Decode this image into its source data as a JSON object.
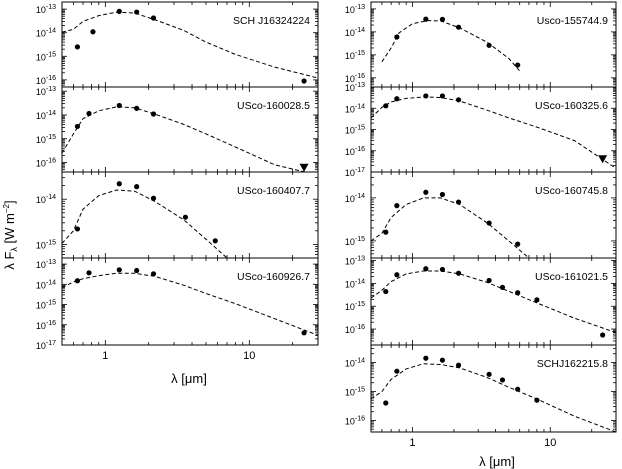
{
  "figure": {
    "ylabel_left": "λ F",
    "ylabel_sub": "λ",
    "ylabel_units": "[W m",
    "ylabel_exp": "−2",
    "ylabel_close": "]",
    "xlabel_left": "λ [μm]",
    "xlabel_right": "λ [μm]"
  },
  "chart_data": [
    {
      "type": "scatter",
      "title": "SCH J16324224",
      "x_scale": "log",
      "y_scale": "log",
      "xlim": [
        0.5,
        30
      ],
      "ylim": [
        5e-17,
        2e-13
      ],
      "yticks": [
        {
          "v": 1e-13,
          "l": "10",
          "e": "-13"
        },
        {
          "v": 1e-14,
          "l": "10",
          "e": "-14"
        },
        {
          "v": 1e-15,
          "l": "10",
          "e": "-15"
        },
        {
          "v": 1e-16,
          "l": "10",
          "e": "-16"
        }
      ],
      "xticks": [],
      "points": [
        [
          0.64,
          2.5e-15
        ],
        [
          0.82,
          1.1e-14
        ],
        [
          1.25,
          8e-14
        ],
        [
          1.65,
          7.5e-14
        ],
        [
          2.16,
          4.2e-14
        ],
        [
          24,
          9e-17
        ]
      ],
      "upper_limits": [],
      "model": [
        [
          0.5,
          1.05e-14
        ],
        [
          0.6,
          1.4e-14
        ],
        [
          0.7,
          3e-14
        ],
        [
          0.9,
          5.3e-14
        ],
        [
          1.2,
          7.5e-14
        ],
        [
          1.6,
          6.8e-14
        ],
        [
          2.2,
          3.6e-14
        ],
        [
          3.5,
          1.25e-14
        ],
        [
          5,
          4e-15
        ],
        [
          8,
          1.2e-15
        ],
        [
          15,
          3.5e-16
        ],
        [
          30,
          1.2e-16
        ]
      ]
    },
    {
      "type": "scatter",
      "title": "Usco-155744.9",
      "x_scale": "log",
      "y_scale": "log",
      "xlim": [
        0.5,
        30
      ],
      "ylim": [
        4e-17,
        2e-13
      ],
      "yticks": [
        {
          "v": 1e-13,
          "l": "10",
          "e": "-13"
        },
        {
          "v": 1e-14,
          "l": "10",
          "e": "-14"
        },
        {
          "v": 1e-15,
          "l": "10",
          "e": "-15"
        },
        {
          "v": 1e-16,
          "l": "10",
          "e": "-16"
        }
      ],
      "xticks": [],
      "points": [
        [
          0.77,
          6e-15
        ],
        [
          1.25,
          3.6e-14
        ],
        [
          1.65,
          3.5e-14
        ],
        [
          2.16,
          1.6e-14
        ],
        [
          3.6,
          2.6e-15
        ],
        [
          5.8,
          3.6e-16
        ]
      ],
      "upper_limits": [],
      "model": [
        [
          0.6,
          5e-16
        ],
        [
          0.7,
          2e-15
        ],
        [
          0.8,
          9e-15
        ],
        [
          1.0,
          2.3e-14
        ],
        [
          1.3,
          3.1e-14
        ],
        [
          1.6,
          3e-14
        ],
        [
          2.2,
          1.5e-14
        ],
        [
          3.5,
          3.5e-15
        ],
        [
          5,
          7e-16
        ],
        [
          6,
          2e-16
        ]
      ]
    },
    {
      "type": "scatter",
      "title": "USco-160028.5",
      "x_scale": "log",
      "y_scale": "log",
      "xlim": [
        0.5,
        30
      ],
      "ylim": [
        4e-17,
        1.5e-13
      ],
      "yticks": [
        {
          "v": 1e-13,
          "l": "10",
          "e": "-13"
        },
        {
          "v": 1e-14,
          "l": "10",
          "e": "-14"
        },
        {
          "v": 1e-15,
          "l": "10",
          "e": "-15"
        },
        {
          "v": 1e-16,
          "l": "10",
          "e": "-16"
        }
      ],
      "xticks": [],
      "points": [
        [
          0.64,
          3.3e-15
        ],
        [
          0.77,
          1.15e-14
        ],
        [
          1.25,
          2.5e-14
        ],
        [
          1.65,
          1.9e-14
        ],
        [
          2.16,
          1.1e-14
        ]
      ],
      "upper_limits": [
        [
          24,
          6e-17
        ]
      ],
      "model": [
        [
          0.5,
          2.5e-16
        ],
        [
          0.6,
          1.6e-15
        ],
        [
          0.7,
          7e-15
        ],
        [
          0.9,
          1.5e-14
        ],
        [
          1.2,
          2.2e-14
        ],
        [
          1.6,
          2e-14
        ],
        [
          2.2,
          1.1e-14
        ],
        [
          3.5,
          4e-15
        ],
        [
          5,
          1.6e-15
        ],
        [
          8,
          4.5e-16
        ],
        [
          15,
          8e-17
        ],
        [
          30,
          3e-17
        ]
      ]
    },
    {
      "type": "scatter",
      "title": "USco-160325.6",
      "x_scale": "log",
      "y_scale": "log",
      "xlim": [
        0.5,
        30
      ],
      "ylim": [
        1e-17,
        1e-13
      ],
      "yticks": [
        {
          "v": 1e-13,
          "l": "10",
          "e": "-13"
        },
        {
          "v": 1e-14,
          "l": "10",
          "e": "-14"
        },
        {
          "v": 1e-15,
          "l": "10",
          "e": "-15"
        },
        {
          "v": 1e-16,
          "l": "10",
          "e": "-16"
        },
        {
          "v": 1e-17,
          "l": "10",
          "e": "-17"
        }
      ],
      "xticks": [],
      "points": [
        [
          0.64,
          1.3e-14
        ],
        [
          0.77,
          2.8e-14
        ],
        [
          1.25,
          3.8e-14
        ],
        [
          1.65,
          3.8e-14
        ],
        [
          2.16,
          2.5e-14
        ]
      ],
      "upper_limits": [
        [
          24,
          4e-17
        ]
      ],
      "model": [
        [
          0.5,
          3.5e-15
        ],
        [
          0.6,
          1.1e-14
        ],
        [
          0.7,
          2e-14
        ],
        [
          0.9,
          2.9e-14
        ],
        [
          1.2,
          3.4e-14
        ],
        [
          1.6,
          3.2e-14
        ],
        [
          2.2,
          2.2e-14
        ],
        [
          3.5,
          8e-15
        ],
        [
          5,
          3.5e-15
        ],
        [
          8,
          1.3e-15
        ],
        [
          15,
          3e-16
        ],
        [
          30,
          1.5e-17
        ]
      ]
    },
    {
      "type": "scatter",
      "title": "USco-160407.7",
      "x_scale": "log",
      "y_scale": "log",
      "xlim": [
        0.5,
        30
      ],
      "ylim": [
        5e-16,
        4e-14
      ],
      "yticks": [
        {
          "v": 1e-14,
          "l": "10",
          "e": "-14"
        },
        {
          "v": 1e-15,
          "l": "10",
          "e": "-15"
        }
      ],
      "xticks": [],
      "points": [
        [
          0.64,
          2.2e-15
        ],
        [
          1.25,
          2.2e-14
        ],
        [
          1.65,
          1.9e-14
        ],
        [
          2.16,
          1.05e-14
        ],
        [
          3.6,
          4e-15
        ],
        [
          5.8,
          1.2e-15
        ]
      ],
      "upper_limits": [],
      "model": [
        [
          0.5,
          1.05e-15
        ],
        [
          0.6,
          2e-15
        ],
        [
          0.7,
          6e-15
        ],
        [
          0.9,
          1.2e-14
        ],
        [
          1.2,
          1.6e-14
        ],
        [
          1.6,
          1.5e-14
        ],
        [
          2.2,
          9e-15
        ],
        [
          3.5,
          3.5e-15
        ],
        [
          5,
          1.3e-15
        ],
        [
          7,
          5e-16
        ]
      ]
    },
    {
      "type": "scatter",
      "title": "USco-160745.8",
      "x_scale": "log",
      "y_scale": "log",
      "xlim": [
        0.5,
        30
      ],
      "ylim": [
        4e-16,
        4e-14
      ],
      "yticks": [
        {
          "v": 1e-14,
          "l": "10",
          "e": "-14"
        },
        {
          "v": 1e-15,
          "l": "10",
          "e": "-15"
        }
      ],
      "xticks": [],
      "points": [
        [
          0.64,
          1.6e-15
        ],
        [
          0.77,
          6.6e-15
        ],
        [
          1.25,
          1.35e-14
        ],
        [
          1.65,
          1.2e-14
        ],
        [
          2.16,
          8e-15
        ],
        [
          3.6,
          2.6e-15
        ],
        [
          5.8,
          8.4e-16
        ]
      ],
      "upper_limits": [],
      "model": [
        [
          0.5,
          1e-15
        ],
        [
          0.6,
          1.5e-15
        ],
        [
          0.7,
          3.5e-15
        ],
        [
          0.9,
          7e-15
        ],
        [
          1.2,
          1e-14
        ],
        [
          1.6,
          1e-14
        ],
        [
          2.2,
          7e-15
        ],
        [
          3.5,
          2.6e-15
        ],
        [
          5,
          1e-15
        ],
        [
          7,
          4e-16
        ]
      ]
    },
    {
      "type": "scatter",
      "title": "USco-160926.7",
      "x_scale": "log",
      "y_scale": "log",
      "xlim": [
        0.5,
        30
      ],
      "ylim": [
        1e-17,
        2e-13
      ],
      "yticks": [
        {
          "v": 1e-13,
          "l": "10",
          "e": "-13"
        },
        {
          "v": 1e-14,
          "l": "10",
          "e": "-14"
        },
        {
          "v": 1e-15,
          "l": "10",
          "e": "-15"
        },
        {
          "v": 1e-16,
          "l": "10",
          "e": "-16"
        },
        {
          "v": 1e-17,
          "l": "10",
          "e": "-17"
        }
      ],
      "xticks": [
        {
          "v": 1,
          "l": "1"
        },
        {
          "v": 10,
          "l": "10"
        }
      ],
      "points": [
        [
          0.64,
          1.5e-14
        ],
        [
          0.77,
          3.7e-14
        ],
        [
          1.25,
          5.2e-14
        ],
        [
          1.65,
          4.8e-14
        ],
        [
          2.16,
          3.3e-14
        ],
        [
          24,
          4e-17
        ]
      ],
      "upper_limits": [],
      "model": [
        [
          0.5,
          7e-15
        ],
        [
          0.6,
          1.3e-14
        ],
        [
          0.7,
          1.9e-14
        ],
        [
          0.9,
          2.7e-14
        ],
        [
          1.2,
          3.5e-14
        ],
        [
          1.6,
          3.5e-14
        ],
        [
          2.2,
          2.5e-14
        ],
        [
          3.5,
          9e-15
        ],
        [
          5,
          3.5e-15
        ],
        [
          8,
          1.1e-15
        ],
        [
          15,
          2e-16
        ],
        [
          30,
          3e-17
        ]
      ]
    },
    {
      "type": "scatter",
      "title": "USco-161021.5",
      "x_scale": "log",
      "y_scale": "log",
      "xlim": [
        0.5,
        30
      ],
      "ylim": [
        2e-17,
        1.3e-13
      ],
      "yticks": [
        {
          "v": 1e-13,
          "l": "10",
          "e": "-13"
        },
        {
          "v": 1e-14,
          "l": "10",
          "e": "-14"
        },
        {
          "v": 1e-15,
          "l": "10",
          "e": "-15"
        },
        {
          "v": 1e-16,
          "l": "10",
          "e": "-16"
        }
      ],
      "xticks": [],
      "points": [
        [
          0.64,
          4.4e-15
        ],
        [
          0.77,
          2.4e-14
        ],
        [
          1.25,
          4.4e-14
        ],
        [
          1.65,
          4.1e-14
        ],
        [
          2.16,
          2.8e-14
        ],
        [
          3.6,
          1.35e-14
        ],
        [
          4.5,
          6.7e-15
        ],
        [
          5.8,
          3.9e-15
        ],
        [
          8,
          1.9e-15
        ],
        [
          24,
          5.5e-17
        ]
      ],
      "upper_limits": [],
      "model": [
        [
          0.5,
          2.3e-15
        ],
        [
          0.6,
          5e-15
        ],
        [
          0.7,
          1.2e-14
        ],
        [
          0.9,
          2.6e-14
        ],
        [
          1.2,
          3.5e-14
        ],
        [
          1.6,
          3.5e-14
        ],
        [
          2.2,
          2.6e-14
        ],
        [
          3.5,
          1.1e-14
        ],
        [
          5,
          4.5e-15
        ],
        [
          8,
          1.4e-15
        ],
        [
          15,
          3e-16
        ],
        [
          30,
          7e-17
        ]
      ]
    },
    {
      "type": "scatter",
      "title": "SCHJ162215.8",
      "x_scale": "log",
      "y_scale": "log",
      "xlim": [
        0.5,
        30
      ],
      "ylim": [
        4e-17,
        4e-14
      ],
      "yticks": [
        {
          "v": 1e-14,
          "l": "10",
          "e": "-14"
        },
        {
          "v": 1e-15,
          "l": "10",
          "e": "-15"
        },
        {
          "v": 1e-16,
          "l": "10",
          "e": "-16"
        }
      ],
      "xticks": [
        {
          "v": 1,
          "l": "1"
        },
        {
          "v": 10,
          "l": "10"
        }
      ],
      "points": [
        [
          0.64,
          4e-16
        ],
        [
          0.77,
          5e-15
        ],
        [
          1.25,
          1.4e-14
        ],
        [
          1.65,
          1.2e-14
        ],
        [
          2.16,
          8e-15
        ],
        [
          3.6,
          3.9e-15
        ],
        [
          4.5,
          2.5e-15
        ],
        [
          5.8,
          1.2e-15
        ],
        [
          8,
          5e-16
        ]
      ],
      "upper_limits": [],
      "model": [
        [
          0.5,
          5.5e-16
        ],
        [
          0.6,
          1e-15
        ],
        [
          0.7,
          2.6e-15
        ],
        [
          0.9,
          6e-15
        ],
        [
          1.2,
          9e-15
        ],
        [
          1.6,
          8.5e-15
        ],
        [
          2.2,
          6.5e-15
        ],
        [
          3.5,
          3e-15
        ],
        [
          5,
          1.4e-15
        ],
        [
          8,
          5.5e-16
        ],
        [
          15,
          1.4e-16
        ],
        [
          30,
          4e-17
        ]
      ]
    }
  ]
}
